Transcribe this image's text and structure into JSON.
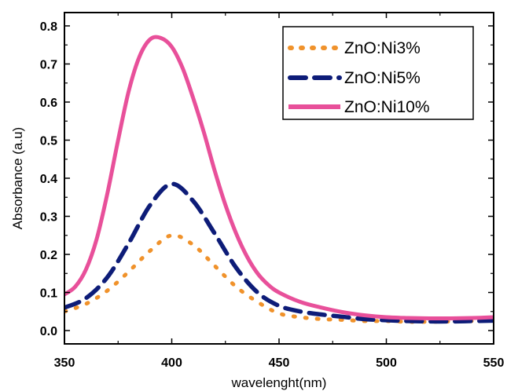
{
  "chart_data": {
    "type": "line",
    "xlabel": "wavelenght(nm)",
    "ylabel": "Absorbance (a.u)",
    "xlim": [
      350,
      550
    ],
    "ylim": [
      -0.035,
      0.835
    ],
    "x_ticks": [
      350,
      400,
      450,
      500,
      550
    ],
    "x_tick_labels": [
      "350",
      "400",
      "450",
      "500",
      "550"
    ],
    "y_ticks": [
      0.0,
      0.1,
      0.2,
      0.3,
      0.4,
      0.5,
      0.6,
      0.7,
      0.8
    ],
    "y_tick_labels": [
      "0.0",
      "0.1",
      "0.2",
      "0.3",
      "0.4",
      "0.5",
      "0.6",
      "0.7",
      "0.8"
    ],
    "grid": false,
    "legend_position": "top-right",
    "series": [
      {
        "name": "ZnO:Ni3%",
        "color": "#F0922B",
        "style": "dotted",
        "x": [
          350,
          360,
          370,
          380,
          390,
          400,
          410,
          420,
          430,
          440,
          450,
          460,
          470,
          480,
          490,
          500,
          510,
          520,
          530,
          540,
          550
        ],
        "y": [
          0.05,
          0.07,
          0.105,
          0.155,
          0.21,
          0.25,
          0.225,
          0.17,
          0.115,
          0.075,
          0.045,
          0.035,
          0.03,
          0.028,
          0.025,
          0.025,
          0.023,
          0.023,
          0.024,
          0.025,
          0.027
        ]
      },
      {
        "name": "ZnO:Ni5%",
        "color": "#0D1C78",
        "style": "dashed",
        "x": [
          350,
          360,
          370,
          380,
          390,
          400,
          410,
          420,
          430,
          440,
          450,
          460,
          470,
          480,
          490,
          500,
          510,
          520,
          530,
          540,
          550
        ],
        "y": [
          0.06,
          0.085,
          0.14,
          0.23,
          0.33,
          0.385,
          0.34,
          0.255,
          0.165,
          0.1,
          0.065,
          0.05,
          0.042,
          0.036,
          0.03,
          0.027,
          0.025,
          0.024,
          0.024,
          0.025,
          0.026
        ]
      },
      {
        "name": "ZnO:Ni10%",
        "color": "#E8509A",
        "style": "solid",
        "x": [
          350,
          355,
          360,
          365,
          370,
          375,
          380,
          385,
          390,
          395,
          400,
          405,
          410,
          415,
          420,
          425,
          430,
          435,
          440,
          445,
          450,
          460,
          470,
          480,
          490,
          500,
          510,
          520,
          530,
          540,
          550
        ],
        "y": [
          0.095,
          0.115,
          0.16,
          0.24,
          0.36,
          0.5,
          0.63,
          0.72,
          0.765,
          0.768,
          0.745,
          0.69,
          0.61,
          0.52,
          0.42,
          0.33,
          0.255,
          0.195,
          0.15,
          0.12,
          0.1,
          0.075,
          0.06,
          0.048,
          0.04,
          0.035,
          0.033,
          0.032,
          0.032,
          0.033,
          0.035
        ]
      }
    ]
  }
}
